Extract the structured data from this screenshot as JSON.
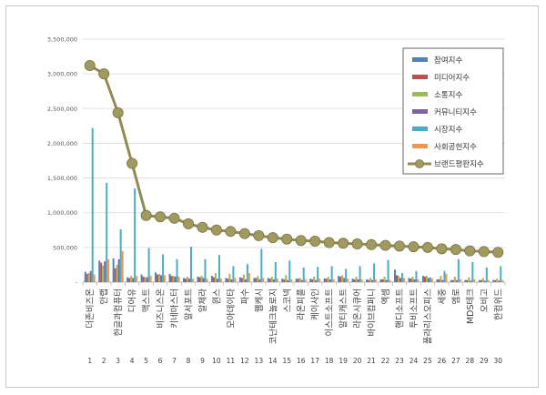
{
  "chart_data": {
    "type": "bar+line",
    "title": "",
    "xlabel": "",
    "ylabel": "",
    "ylim": [
      0,
      3500000
    ],
    "yticks": [
      "-",
      "500,000",
      "1,000,000",
      "1,500,000",
      "2,000,000",
      "2,500,000",
      "3,000,000",
      "3,500,000"
    ],
    "ytick_values": [
      0,
      500000,
      1000000,
      1500000,
      2000000,
      2500000,
      3000000,
      3500000
    ],
    "grid": true,
    "legend_position": "top-right",
    "categories": [
      "더존비즈온",
      "안랩",
      "한글과컴퓨터",
      "디어유",
      "맥스트",
      "비즈니스온",
      "키네마스터",
      "알서포트",
      "알체라",
      "윈스",
      "모아데이타",
      "파수",
      "웹케시",
      "코난테크놀로지",
      "스코넥",
      "라온피플",
      "케이사인",
      "이스트소프트",
      "알티캐스트",
      "라온시큐어",
      "바이브컴퍼니",
      "엑셈",
      "핸디소프트",
      "투비소프트",
      "폴라리스오피스",
      "세중",
      "엠로",
      "MDS테크",
      "오비고",
      "한컴위드"
    ],
    "ranks": [
      "1",
      "2",
      "3",
      "4",
      "5",
      "6",
      "7",
      "8",
      "9",
      "10",
      "11",
      "12",
      "13",
      "14",
      "15",
      "16",
      "17",
      "18",
      "19",
      "20",
      "21",
      "22",
      "23",
      "24",
      "25",
      "26",
      "27",
      "28",
      "29",
      "30"
    ],
    "series": [
      {
        "name": "참여지수",
        "color": "#4f81bd",
        "values": [
          150000,
          310000,
          340000,
          70000,
          110000,
          140000,
          120000,
          60000,
          80000,
          90000,
          60000,
          70000,
          60000,
          60000,
          50000,
          50000,
          50000,
          55000,
          90000,
          50000,
          40000,
          40000,
          180000,
          60000,
          90000,
          40000,
          30000,
          30000,
          30000,
          30000
        ]
      },
      {
        "name": "미디어지수",
        "color": "#c0504d",
        "values": [
          120000,
          280000,
          200000,
          60000,
          80000,
          110000,
          90000,
          50000,
          70000,
          70000,
          50000,
          60000,
          60000,
          50000,
          40000,
          50000,
          40000,
          50000,
          80000,
          40000,
          30000,
          40000,
          100000,
          50000,
          80000,
          40000,
          30000,
          30000,
          30000,
          30000
        ]
      },
      {
        "name": "소통지수",
        "color": "#9bbb59",
        "values": [
          130000,
          240000,
          250000,
          90000,
          70000,
          120000,
          90000,
          80000,
          90000,
          130000,
          120000,
          110000,
          90000,
          80000,
          100000,
          60000,
          80000,
          80000,
          100000,
          80000,
          60000,
          80000,
          90000,
          80000,
          90000,
          90000,
          80000,
          70000,
          60000,
          50000
        ]
      },
      {
        "name": "커뮤니티지수",
        "color": "#8064a2",
        "values": [
          160000,
          300000,
          330000,
          60000,
          70000,
          100000,
          80000,
          50000,
          60000,
          50000,
          40000,
          40000,
          40000,
          40000,
          30000,
          30000,
          30000,
          40000,
          60000,
          40000,
          30000,
          30000,
          60000,
          40000,
          60000,
          30000,
          30000,
          20000,
          20000,
          20000
        ]
      },
      {
        "name": "시장지수",
        "color": "#4bacc6",
        "values": [
          2220000,
          1430000,
          760000,
          1350000,
          490000,
          400000,
          330000,
          510000,
          330000,
          390000,
          230000,
          260000,
          480000,
          290000,
          310000,
          210000,
          220000,
          230000,
          190000,
          230000,
          270000,
          320000,
          130000,
          160000,
          70000,
          160000,
          330000,
          290000,
          210000,
          230000
        ]
      },
      {
        "name": "사회공헌지수",
        "color": "#f79646",
        "values": [
          110000,
          330000,
          450000,
          90000,
          90000,
          100000,
          80000,
          50000,
          50000,
          50000,
          60000,
          130000,
          60000,
          50000,
          40000,
          40000,
          50000,
          40000,
          50000,
          40000,
          40000,
          30000,
          60000,
          40000,
          50000,
          120000,
          40000,
          40000,
          30000,
          30000
        ]
      },
      {
        "name": "브랜드평판지수",
        "color": "#938953",
        "values": [
          3120000,
          3000000,
          2440000,
          1710000,
          960000,
          940000,
          920000,
          840000,
          790000,
          750000,
          730000,
          700000,
          670000,
          640000,
          620000,
          600000,
          590000,
          570000,
          560000,
          550000,
          540000,
          530000,
          520000,
          510000,
          500000,
          480000,
          470000,
          450000,
          440000,
          430000
        ]
      }
    ]
  }
}
